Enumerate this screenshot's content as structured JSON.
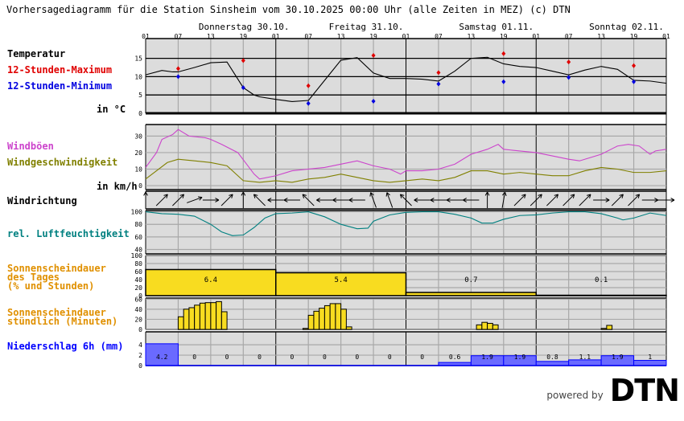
{
  "title": "Vorhersagediagramm für die Station Sinsheim vom 30.10.2025 00:00 Uhr (alle Zeiten in MEZ)   (c) DTN",
  "days": [
    "Donnerstag 30.10.",
    "Freitag 31.10.",
    "Samstag 01.11.",
    "Sonntag 02.11."
  ],
  "hour_ticks": [
    "01",
    "07",
    "13",
    "19",
    "01",
    "07",
    "13",
    "19",
    "01",
    "07",
    "13",
    "19",
    "01",
    "07",
    "13",
    "19",
    "01"
  ],
  "labels": {
    "temp": "Temperatur",
    "tmax": "12-Stunden-Maximum",
    "tmin": "12-Stunden-Minimum",
    "temp_unit": "in °C",
    "gust": "Windböen",
    "wind": "Windgeschwindigkeit",
    "wind_unit": "in km/h",
    "dir": "Windrichtung",
    "hum": "rel. Luftfeuchtigkeit",
    "sun_day": "Sonnenscheindauer\ndes Tages\n(% und Stunden)",
    "sun_hour": "Sonnenscheindauer\nstündlich (Minuten)",
    "precip": "Niederschlag 6h (mm)"
  },
  "colors": {
    "temp": "#000000",
    "tmax": "#e00000",
    "tmin": "#0000e0",
    "gust": "#cc44cc",
    "wind": "#808000",
    "hum": "#008080",
    "sun": "#e09000",
    "sun_fill": "#f8dc20",
    "precip": "#0000ff",
    "precip_fill": "#6a6aff",
    "panel": "#dcdcdc"
  },
  "chart_data": [
    {
      "type": "line",
      "name": "temperature",
      "ylabel": "in °C",
      "yticks": [
        0,
        5,
        10,
        15
      ],
      "x_unit": "hours from 30.10. 01:00",
      "x": [
        0,
        3,
        5,
        6,
        9,
        12,
        15,
        18,
        20,
        21,
        24,
        27,
        30,
        33,
        36,
        39,
        42,
        45,
        48,
        51,
        54,
        57,
        60,
        63,
        66,
        69,
        72,
        75,
        78,
        81,
        84,
        87,
        90,
        93,
        96
      ],
      "series": [
        {
          "name": "Temperatur",
          "values": [
            10.5,
            11.7,
            11.3,
            11.3,
            12.5,
            13.8,
            14,
            7,
            5,
            4.5,
            3.8,
            3.2,
            3.5,
            9,
            14.5,
            15.2,
            11,
            9.5,
            9.5,
            9.3,
            8.8,
            11.5,
            15,
            15.3,
            13.5,
            12.8,
            12.5,
            11.5,
            10.5,
            11.8,
            12.8,
            12,
            9,
            8.8,
            8.2
          ]
        }
      ],
      "max": {
        "name": "12-Stunden-Maximum",
        "x": [
          6,
          18,
          30,
          42,
          54,
          66,
          78,
          90
        ],
        "values": [
          12.2,
          14.4,
          7.5,
          15.8,
          11.1,
          16.3,
          14,
          13
        ]
      },
      "min": {
        "name": "12-Stunden-Minimum",
        "x": [
          6,
          18,
          30,
          42,
          54,
          66,
          78,
          90
        ],
        "values": [
          10,
          7,
          2.7,
          3.3,
          8,
          8.6,
          9.8,
          8.6
        ]
      }
    },
    {
      "type": "line",
      "name": "wind",
      "ylabel": "in km/h",
      "yticks": [
        0,
        10,
        20,
        30
      ],
      "gust": {
        "name": "Windböen",
        "x": [
          0,
          2,
          3,
          5,
          6,
          8,
          11,
          12,
          14,
          17,
          20,
          21,
          24,
          27,
          33,
          36,
          39,
          42,
          45,
          47,
          48,
          51,
          54,
          57,
          60,
          63,
          65,
          66,
          69,
          72,
          75,
          78,
          80,
          82,
          84,
          87,
          89,
          91,
          93,
          94,
          96
        ],
        "values": [
          11,
          20,
          28,
          31,
          34,
          30,
          29,
          28,
          25,
          20,
          7,
          4,
          6,
          9,
          11,
          13,
          15,
          12,
          10,
          7,
          9,
          9,
          10,
          13,
          19,
          22,
          25,
          22,
          21,
          20,
          18,
          16,
          15,
          17,
          19,
          24,
          25,
          24,
          19,
          21,
          22
        ]
      },
      "speed": {
        "name": "Windgeschwindigkeit",
        "x": [
          0,
          2,
          4,
          6,
          9,
          12,
          15,
          18,
          21,
          24,
          27,
          30,
          33,
          36,
          39,
          42,
          45,
          48,
          51,
          54,
          57,
          60,
          63,
          66,
          69,
          72,
          75,
          78,
          81,
          84,
          87,
          90,
          93,
          96
        ],
        "values": [
          4,
          9,
          14,
          16,
          15,
          14,
          12,
          3,
          2,
          3,
          2,
          4,
          5,
          7,
          5,
          3,
          2,
          3,
          4,
          3,
          5,
          9,
          9,
          7,
          8,
          7,
          6,
          6,
          9,
          11,
          10,
          8,
          8,
          9
        ]
      }
    },
    {
      "type": "vector",
      "name": "wind-direction",
      "x_step_hours": 3,
      "angles_deg": [
        0,
        45,
        45,
        70,
        90,
        45,
        0,
        -45,
        -90,
        -90,
        -45,
        -90,
        -90,
        -90,
        -20,
        -20,
        -45,
        -90,
        -90,
        -90,
        -90,
        0,
        10,
        45,
        45,
        45,
        45,
        45,
        90,
        45,
        45,
        90,
        90
      ]
    },
    {
      "type": "line",
      "name": "humidity",
      "yticks": [
        40,
        60,
        80,
        100
      ],
      "x": [
        0,
        3,
        6,
        9,
        12,
        14,
        16,
        18,
        20,
        22,
        24,
        27,
        30,
        33,
        36,
        39,
        41,
        42,
        45,
        48,
        51,
        54,
        57,
        60,
        62,
        64,
        66,
        69,
        72,
        75,
        78,
        81,
        84,
        87,
        88,
        90,
        93,
        96
      ],
      "values": [
        100,
        97,
        96,
        93,
        80,
        68,
        62,
        63,
        75,
        90,
        97,
        98,
        100,
        92,
        80,
        73,
        74,
        85,
        95,
        99,
        100,
        100,
        96,
        90,
        82,
        82,
        88,
        94,
        95,
        98,
        100,
        100,
        97,
        90,
        87,
        90,
        98,
        94
      ]
    },
    {
      "type": "bar",
      "name": "sunshine-daily",
      "yticks": [
        0,
        20,
        40,
        60,
        80,
        100
      ],
      "percent": [
        65,
        57,
        8,
        1
      ],
      "hours": [
        "6.4",
        "5.4",
        "0.7",
        "0.1"
      ]
    },
    {
      "type": "bar",
      "name": "sunshine-hourly",
      "yticks": [
        0,
        20,
        40,
        60
      ],
      "x": [
        6,
        7,
        8,
        9,
        10,
        11,
        12,
        13,
        14,
        29,
        30,
        31,
        32,
        33,
        34,
        35,
        36,
        37,
        61,
        62,
        63,
        64,
        84,
        85
      ],
      "values": [
        25,
        40,
        43,
        48,
        52,
        53,
        53,
        55,
        35,
        2,
        28,
        36,
        42,
        47,
        51,
        51,
        40,
        5,
        9,
        14,
        12,
        9,
        2,
        8
      ]
    },
    {
      "type": "bar",
      "name": "precipitation-6h",
      "yticks": [
        0,
        2,
        4
      ],
      "values": [
        4.2,
        0,
        0,
        0,
        0,
        0,
        0,
        0,
        0,
        0.6,
        1.9,
        1.9,
        0.8,
        1.1,
        1.9,
        1
      ],
      "labels": [
        "4.2",
        "0",
        "0",
        "0",
        "0",
        "0",
        "0",
        "0",
        "0",
        "0.6",
        "1.9",
        "1.9",
        "0.8",
        "1.1",
        "1.9",
        "1"
      ]
    }
  ],
  "logo": {
    "powered": "powered by",
    "brand": "DTN"
  }
}
